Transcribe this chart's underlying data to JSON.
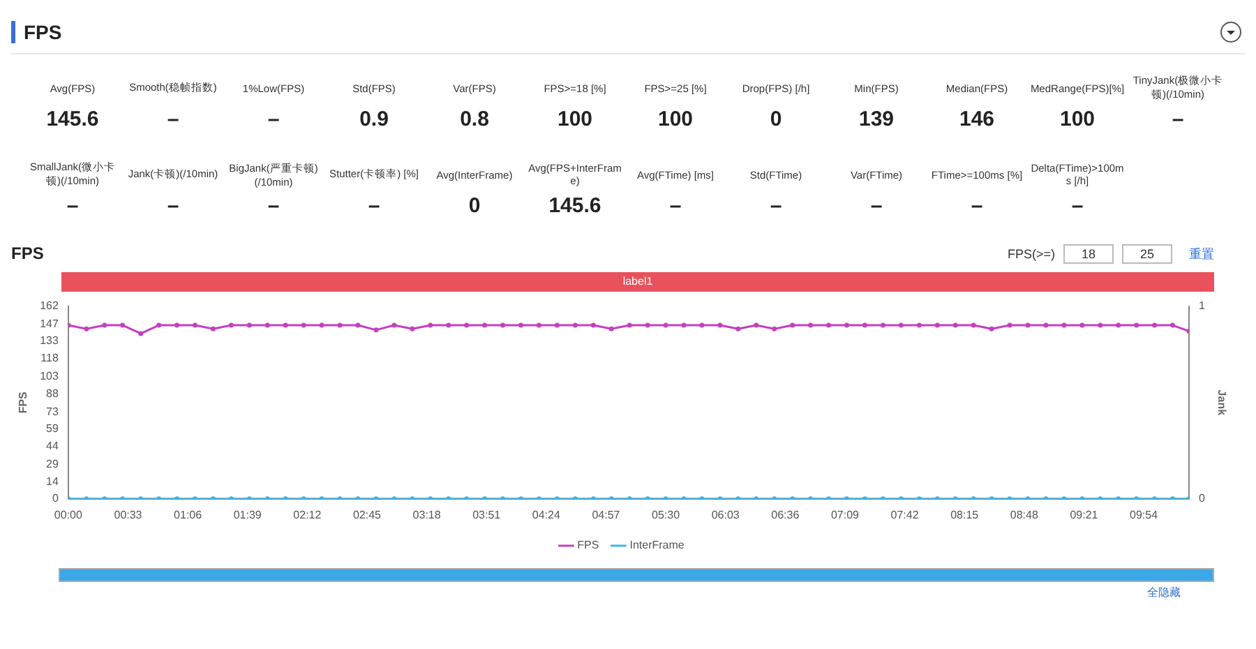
{
  "chart_data": [
    {
      "type": "other",
      "title": "FPS",
      "categories": [
        "Avg(FPS)",
        "Smooth(稳帧指数)",
        "1%Low(FPS)",
        "Std(FPS)",
        "Var(FPS)",
        "FPS>=18 [%]",
        "FPS>=25 [%]",
        "Drop(FPS) [/h]",
        "Min(FPS)",
        "Median(FPS)",
        "MedRange(FPS)[%]",
        "TinyJank(极微小卡顿)(/10min)",
        "SmallJank(微小卡顿)(/10min)",
        "Jank(卡顿)(/10min)",
        "BigJank(严重卡顿)(/10min)",
        "Stutter(卡顿率) [%]",
        "Avg(InterFrame)",
        "Avg(FPS+InterFrame)",
        "Avg(FTime) [ms]",
        "Std(FTime)",
        "Var(FTime)",
        "FTime>=100ms [%]",
        "Delta(FTime)>100ms [/h]"
      ],
      "value_labels": [
        "145.6",
        "–",
        "–",
        "0.9",
        "0.8",
        "100",
        "100",
        "0",
        "139",
        "146",
        "100",
        "–",
        "–",
        "–",
        "–",
        "–",
        "0",
        "145.6",
        "–",
        "–",
        "–",
        "–",
        "–"
      ]
    },
    {
      "type": "line",
      "title": "FPS",
      "ylabel": "FPS",
      "y2label": "Jank",
      "legend": "bottom",
      "grid": false,
      "marker": "circle",
      "x": [
        0,
        10,
        20,
        30,
        40,
        50,
        60,
        70,
        80,
        90,
        100,
        110,
        120,
        130,
        140,
        150,
        160,
        170,
        180,
        190,
        200,
        210,
        220,
        230,
        240,
        250,
        260,
        270,
        280,
        290,
        300,
        310,
        320,
        330,
        340,
        350,
        360,
        370,
        380,
        390,
        400,
        410,
        420,
        430,
        440,
        450,
        460,
        470,
        480,
        490,
        500,
        510,
        520,
        530,
        540,
        550,
        560,
        570,
        580,
        590,
        600,
        610,
        619
      ],
      "series": [
        {
          "name": "FPS",
          "color": "#c53fc1",
          "values": [
            146,
            143,
            146,
            146,
            139,
            146,
            146,
            146,
            143,
            146,
            146,
            146,
            146,
            146,
            146,
            146,
            146,
            142,
            146,
            143,
            146,
            146,
            146,
            146,
            146,
            146,
            146,
            146,
            146,
            146,
            143,
            146,
            146,
            146,
            146,
            146,
            146,
            143,
            146,
            143,
            146,
            146,
            146,
            146,
            146,
            146,
            146,
            146,
            146,
            146,
            146,
            143,
            146,
            146,
            146,
            146,
            146,
            146,
            146,
            146,
            146,
            146,
            141
          ]
        },
        {
          "name": "InterFrame",
          "color": "#3bb6e8",
          "values": [
            0,
            0,
            0,
            0,
            0,
            0,
            0,
            0,
            0,
            0,
            0,
            0,
            0,
            0,
            0,
            0,
            0,
            0,
            0,
            0,
            0,
            0,
            0,
            0,
            0,
            0,
            0,
            0,
            0,
            0,
            0,
            0,
            0,
            0,
            0,
            0,
            0,
            0,
            0,
            0,
            0,
            0,
            0,
            0,
            0,
            0,
            0,
            0,
            0,
            0,
            0,
            0,
            0,
            0,
            0,
            0,
            0,
            0,
            0,
            0,
            0,
            0,
            0
          ]
        }
      ],
      "xlim": [
        0,
        619
      ],
      "xticks": [
        {
          "value": 0,
          "label": "00:00"
        },
        {
          "value": 33,
          "label": "00:33"
        },
        {
          "value": 66,
          "label": "01:06"
        },
        {
          "value": 99,
          "label": "01:39"
        },
        {
          "value": 132,
          "label": "02:12"
        },
        {
          "value": 165,
          "label": "02:45"
        },
        {
          "value": 198,
          "label": "03:18"
        },
        {
          "value": 231,
          "label": "03:51"
        },
        {
          "value": 264,
          "label": "04:24"
        },
        {
          "value": 297,
          "label": "04:57"
        },
        {
          "value": 330,
          "label": "05:30"
        },
        {
          "value": 363,
          "label": "06:03"
        },
        {
          "value": 396,
          "label": "06:36"
        },
        {
          "value": 429,
          "label": "07:09"
        },
        {
          "value": 462,
          "label": "07:42"
        },
        {
          "value": 495,
          "label": "08:15"
        },
        {
          "value": 528,
          "label": "08:48"
        },
        {
          "value": 561,
          "label": "09:21"
        },
        {
          "value": 594,
          "label": "09:54"
        }
      ],
      "ylim": [
        0,
        162
      ],
      "yticks": [
        0,
        14,
        29,
        44,
        59,
        73,
        88,
        103,
        118,
        133,
        147,
        162
      ],
      "y2lim": [
        0,
        1
      ],
      "y2ticks": [
        0,
        1
      ],
      "annotations": [
        "FPS(>=)",
        "18",
        "25",
        "重置",
        "全隐藏",
        "label1"
      ]
    }
  ]
}
